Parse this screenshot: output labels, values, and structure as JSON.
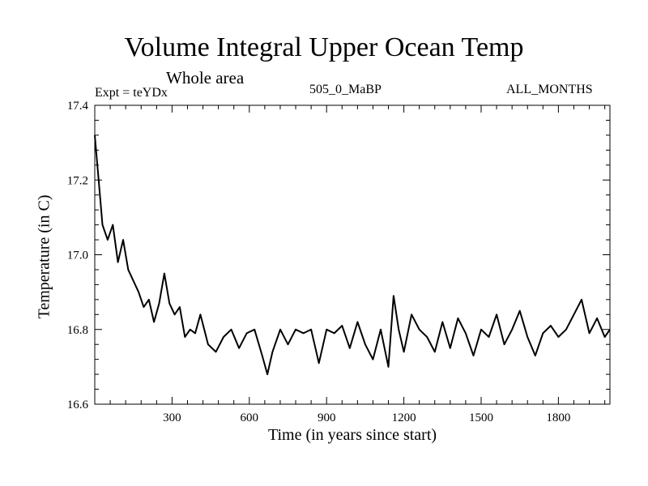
{
  "chart_data": {
    "type": "line",
    "title": "Volume Integral Upper Ocean Temp",
    "subtitle": "Whole area",
    "annotation_left": "Expt = teYDx",
    "annotation_center": "505_0_MaBP",
    "annotation_right": "ALL_MONTHS",
    "xlabel": "Time (in years since start)",
    "ylabel": "Temperature (in C)",
    "xlim": [
      0,
      2000
    ],
    "ylim": [
      16.6,
      17.4
    ],
    "xticks": [
      300,
      600,
      900,
      1200,
      1500,
      1800
    ],
    "yticks": [
      16.6,
      16.8,
      17.0,
      17.2,
      17.4
    ],
    "ytick_labels": [
      "16.6",
      "16.8",
      "17.0",
      "17.2",
      "17.4"
    ],
    "grid": false,
    "series": [
      {
        "name": "Temperature",
        "color": "#000000",
        "x": [
          0,
          15,
          30,
          50,
          70,
          90,
          110,
          130,
          150,
          170,
          190,
          210,
          230,
          250,
          270,
          290,
          310,
          330,
          350,
          370,
          390,
          410,
          440,
          470,
          500,
          530,
          560,
          590,
          620,
          650,
          670,
          690,
          720,
          750,
          780,
          810,
          840,
          870,
          900,
          930,
          960,
          990,
          1020,
          1050,
          1080,
          1110,
          1140,
          1160,
          1180,
          1200,
          1230,
          1260,
          1290,
          1320,
          1350,
          1380,
          1410,
          1440,
          1470,
          1500,
          1530,
          1560,
          1590,
          1620,
          1650,
          1680,
          1710,
          1740,
          1770,
          1800,
          1830,
          1860,
          1890,
          1920,
          1950,
          1980,
          2000
        ],
        "values": [
          17.32,
          17.2,
          17.08,
          17.04,
          17.08,
          16.98,
          17.04,
          16.96,
          16.93,
          16.9,
          16.86,
          16.88,
          16.82,
          16.87,
          16.95,
          16.87,
          16.84,
          16.86,
          16.78,
          16.8,
          16.79,
          16.84,
          16.76,
          16.74,
          16.78,
          16.8,
          16.75,
          16.79,
          16.8,
          16.73,
          16.68,
          16.74,
          16.8,
          16.76,
          16.8,
          16.79,
          16.8,
          16.71,
          16.8,
          16.79,
          16.81,
          16.75,
          16.82,
          16.76,
          16.72,
          16.8,
          16.7,
          16.89,
          16.8,
          16.74,
          16.84,
          16.8,
          16.78,
          16.74,
          16.82,
          16.75,
          16.83,
          16.79,
          16.73,
          16.8,
          16.78,
          16.84,
          16.76,
          16.8,
          16.85,
          16.78,
          16.73,
          16.79,
          16.81,
          16.78,
          16.8,
          16.84,
          16.88,
          16.79,
          16.83,
          16.78,
          16.8
        ]
      }
    ]
  }
}
